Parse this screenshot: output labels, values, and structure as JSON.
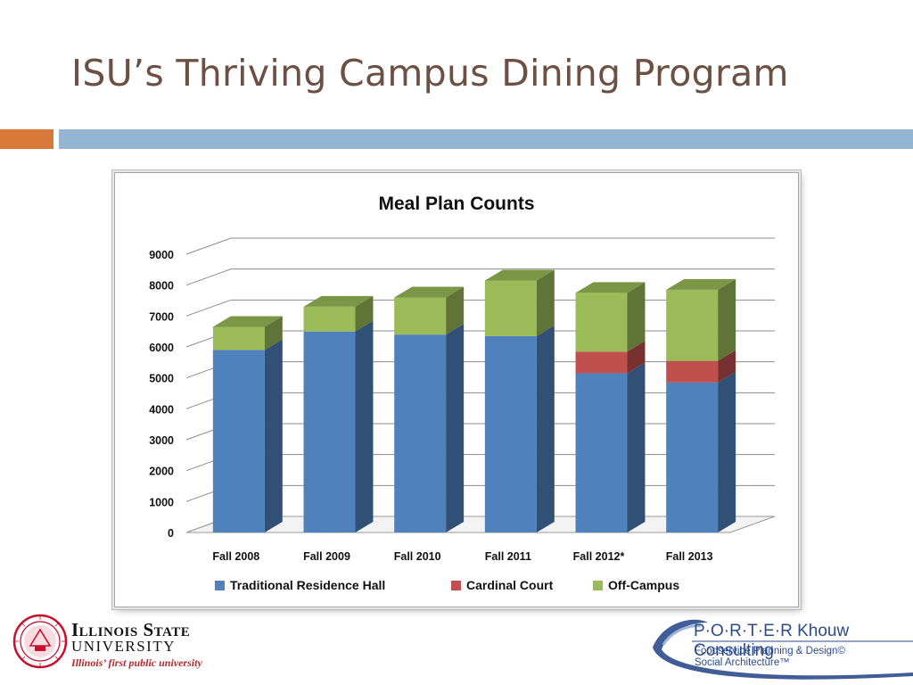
{
  "slide": {
    "title": "ISU’s Thriving Campus Dining Program"
  },
  "chart_data": {
    "type": "bar",
    "stacked": true,
    "three_d": true,
    "title": "Meal Plan Counts",
    "xlabel": "",
    "ylabel": "",
    "categories": [
      "Fall 2008",
      "Fall 2009",
      "Fall 2010",
      "Fall 2011",
      "Fall 2012*",
      "Fall 2013"
    ],
    "series": [
      {
        "name": "Traditional Residence Hall",
        "color": "#4f81bd",
        "values": [
          5900,
          6500,
          6400,
          6350,
          5150,
          4850
        ]
      },
      {
        "name": "Cardinal Court",
        "color": "#c0504d",
        "values": [
          0,
          0,
          0,
          0,
          700,
          700
        ]
      },
      {
        "name": "Off-Campus",
        "color": "#9bbb59",
        "values": [
          750,
          800,
          1200,
          1800,
          1900,
          2300
        ]
      }
    ],
    "ylim": [
      0,
      9000
    ],
    "yticks": [
      "0",
      "1000",
      "2000",
      "3000",
      "4000",
      "5000",
      "6000",
      "7000",
      "8000",
      "9000"
    ],
    "grid": true,
    "legend": "bottom"
  },
  "logos": {
    "isu": {
      "name": "Illinois State",
      "univ": "UNIVERSITY",
      "tagline": "Illinois’ first public university",
      "seal_color": "#c8102e"
    },
    "porter": {
      "name": "P·O·R·T·E·R Khouw Consulting",
      "line1": "Foodservice Planning & Design©",
      "line2": "Social Architecture™",
      "color": "#2c4b8c"
    }
  }
}
